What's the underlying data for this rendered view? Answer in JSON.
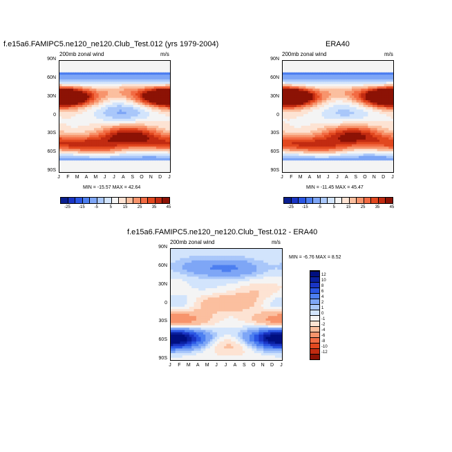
{
  "chart_data": [
    {
      "type": "heatmap",
      "title": "f.e15a6.FAMIPC5.ne120_ne120.Club_Test.012 (yrs 1979-2004)",
      "left_label": "200mb zonal wind",
      "right_label": "m/s",
      "x_ticks": [
        "J",
        "F",
        "M",
        "A",
        "M",
        "J",
        "J",
        "A",
        "S",
        "O",
        "N",
        "D",
        "J"
      ],
      "y_ticks": [
        "90N",
        "60N",
        "30N",
        "0",
        "30S",
        "60S",
        "90S"
      ],
      "stats": "MIN = -15.57 MAX =  42.64",
      "ylim": [
        -90,
        90
      ],
      "features": [
        {
          "month": 0.5,
          "lat": 32,
          "value": 42
        },
        {
          "month": 11.6,
          "lat": 32,
          "value": 38
        },
        {
          "month": 6.5,
          "lat": 42,
          "value": 18
        },
        {
          "month": 6.8,
          "lat": 5,
          "value": -15
        },
        {
          "month": 8.0,
          "lat": 25,
          "value": -5
        },
        {
          "month": 7.5,
          "lat": -30,
          "value": 35
        },
        {
          "month": 2.0,
          "lat": -45,
          "value": 22
        },
        {
          "month": 5.0,
          "lat": -50,
          "value": 25
        },
        {
          "month": 10.5,
          "lat": -45,
          "value": 22
        }
      ]
    },
    {
      "type": "heatmap",
      "title": "ERA40",
      "left_label": "200mb zonal wind",
      "right_label": "m/s",
      "x_ticks": [
        "J",
        "F",
        "M",
        "A",
        "M",
        "J",
        "J",
        "A",
        "S",
        "O",
        "N",
        "D",
        "J"
      ],
      "y_ticks": [
        "90N",
        "60N",
        "30N",
        "0",
        "30S",
        "60S",
        "90S"
      ],
      "stats": "MIN = -11.45 MAX =  45.47",
      "ylim": [
        -90,
        90
      ],
      "features": [
        {
          "month": 0.5,
          "lat": 32,
          "value": 45
        },
        {
          "month": 11.6,
          "lat": 32,
          "value": 40
        },
        {
          "month": 6.5,
          "lat": 42,
          "value": 16
        },
        {
          "month": 6.8,
          "lat": 5,
          "value": -11
        },
        {
          "month": 8.0,
          "lat": 25,
          "value": -3
        },
        {
          "month": 7.5,
          "lat": -30,
          "value": 33
        },
        {
          "month": 2.0,
          "lat": -45,
          "value": 22
        },
        {
          "month": 5.0,
          "lat": -50,
          "value": 24
        },
        {
          "month": 10.5,
          "lat": -45,
          "value": 20
        }
      ]
    },
    {
      "type": "heatmap",
      "title": "f.e15a6.FAMIPC5.ne120_ne120.Club_Test.012 - ERA40",
      "left_label": "200mb zonal wind",
      "right_label": "m/s",
      "x_ticks": [
        "J",
        "F",
        "M",
        "A",
        "M",
        "J",
        "J",
        "A",
        "S",
        "O",
        "N",
        "D",
        "J"
      ],
      "y_ticks": [
        "90N",
        "60N",
        "30N",
        "0",
        "30S",
        "60S",
        "90S"
      ],
      "stats": "MIN =  -6.76 MAX =   8.52",
      "ylim": [
        -90,
        90
      ],
      "features": [
        {
          "month": 0.5,
          "lat": -55,
          "value": 8
        },
        {
          "month": 11.6,
          "lat": -55,
          "value": 8
        },
        {
          "month": 7.0,
          "lat": 58,
          "value": 4
        },
        {
          "month": 3.0,
          "lat": 60,
          "value": 3
        },
        {
          "month": 0.6,
          "lat": 0,
          "value": 3
        },
        {
          "month": 3.5,
          "lat": 2,
          "value": -3
        },
        {
          "month": 8.0,
          "lat": 5,
          "value": -3
        },
        {
          "month": 0.5,
          "lat": -25,
          "value": -6
        },
        {
          "month": 10.0,
          "lat": 25,
          "value": -2
        },
        {
          "month": 6.5,
          "lat": -65,
          "value": -3
        }
      ]
    }
  ],
  "colorbar_abs": {
    "labels": [
      "-25",
      "-15",
      "-5",
      "5",
      "15",
      "25",
      "35",
      "45"
    ],
    "colors": [
      "#0a1f8f",
      "#1a35c4",
      "#2b56e3",
      "#4d7ff0",
      "#7ea6f6",
      "#a9c7fa",
      "#d2e4fc",
      "#f4f4f4",
      "#fde3d3",
      "#fbbf9f",
      "#f7946c",
      "#f26b43",
      "#e2481f",
      "#c22b11",
      "#8c1205"
    ]
  },
  "colorbar_diff": {
    "labels": [
      "12",
      "10",
      "8",
      "6",
      "4",
      "2",
      "1",
      "0",
      "-1",
      "-2",
      "-4",
      "-6",
      "-8",
      "-10",
      "-12"
    ],
    "colors": [
      "#000f80",
      "#0a1f9e",
      "#1a35c4",
      "#2b56e3",
      "#4d7ff0",
      "#7ea6f6",
      "#a9c7fa",
      "#d2e4fc",
      "#f4f4f4",
      "#fde3d3",
      "#fbbf9f",
      "#f7946c",
      "#f26b43",
      "#e2481f",
      "#c22b11",
      "#8c1205"
    ]
  }
}
